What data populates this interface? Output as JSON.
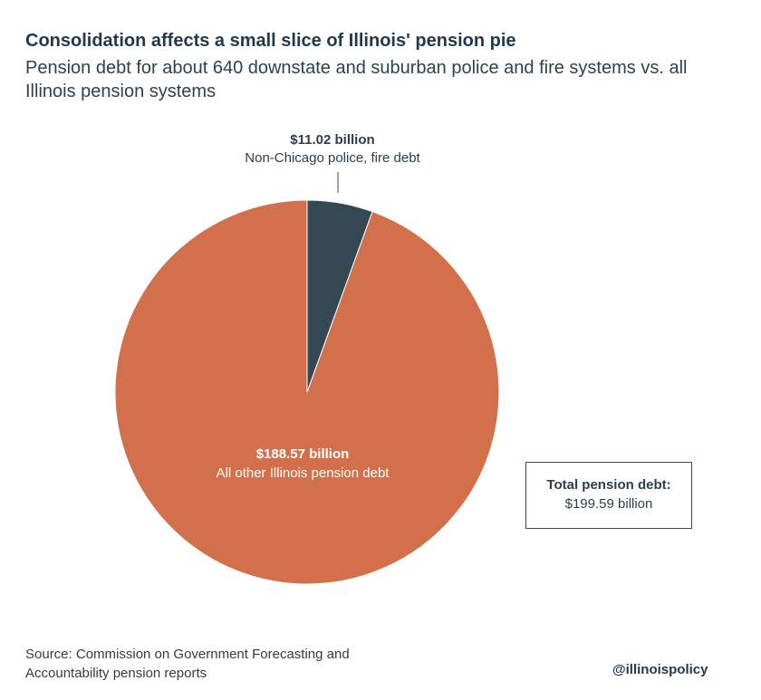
{
  "chart_data": {
    "type": "pie",
    "title": "Consolidation affects a small slice of Illinois' pension pie",
    "subtitle": "Pension debt for about 640 downstate and suburban police and fire systems vs. all Illinois pension systems",
    "slices": [
      {
        "value_label": "$11.02 billion",
        "category": "Non-Chicago police, fire debt",
        "value": 11.02,
        "color": "#344853"
      },
      {
        "value_label": "$188.57 billion",
        "category": "All other Illinois pension debt",
        "value": 188.57,
        "color": "#d3704c"
      }
    ],
    "total_label": "Total pension debt:",
    "total_value": "$199.59 billion"
  },
  "footer": {
    "source": "Source:  Commission on Government Forecasting and Accountability pension reports",
    "handle": "@illinoispolicy"
  }
}
